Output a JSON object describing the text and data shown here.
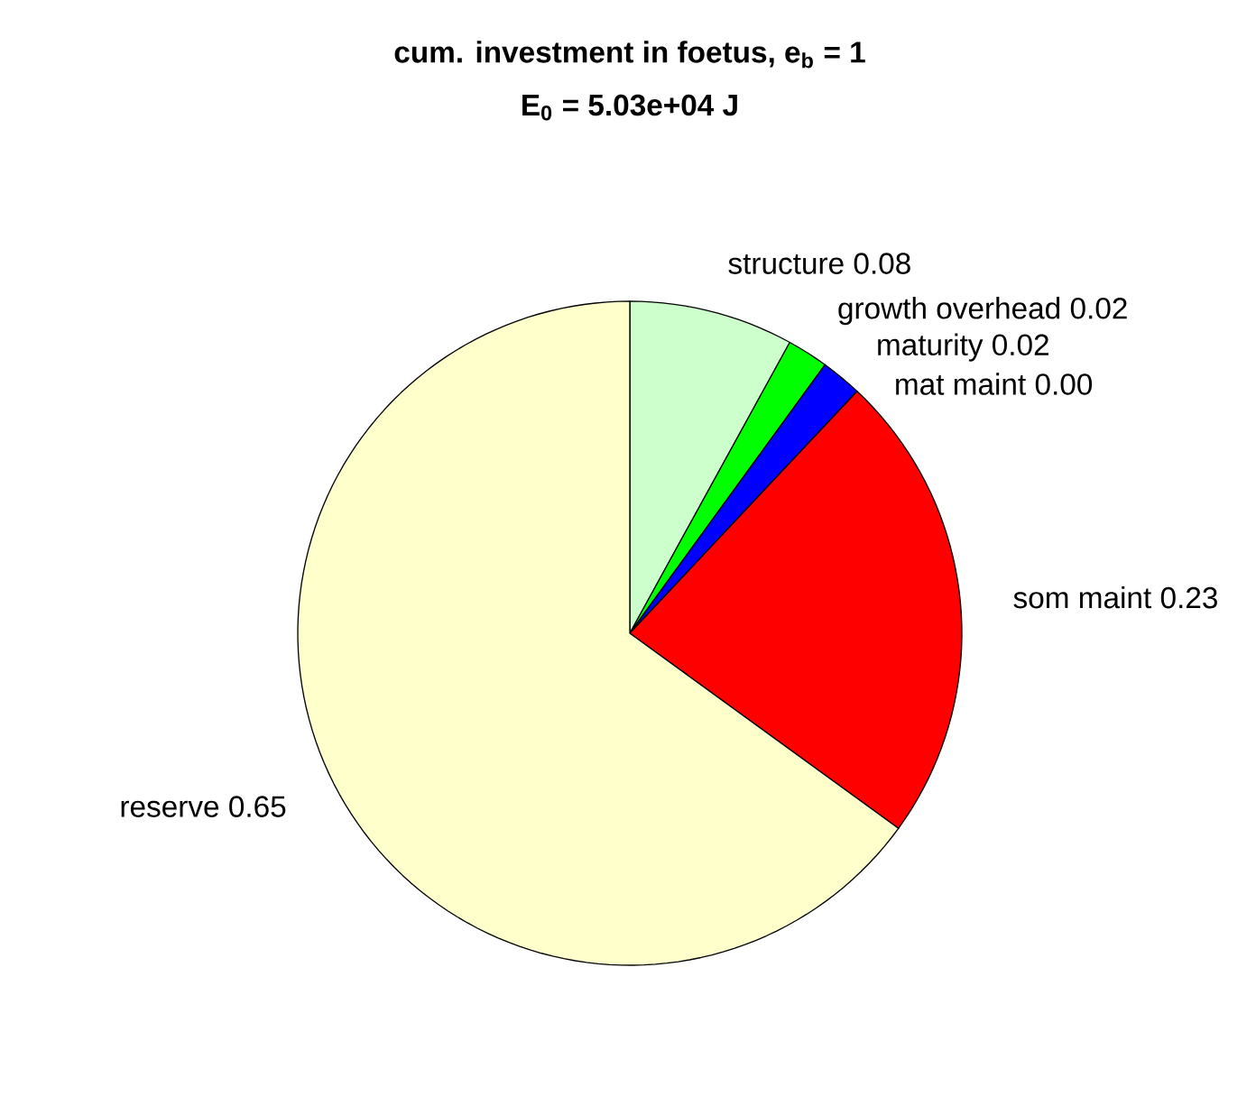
{
  "chart_data": {
    "type": "pie",
    "title": "cum. investment in foetus, e$_{b}$ = 1",
    "subtitle": "E$_{0}$ = 5.03e+04 J",
    "categories": [
      "structure",
      "growth overhead",
      "maturity",
      "mat maint",
      "som maint",
      "reserve"
    ],
    "values": [
      0.08,
      0.02,
      0.02,
      0,
      0.23,
      0.65
    ],
    "value_labels": [
      "0.08",
      "0.02",
      "0.02",
      "0.00",
      "0.23",
      "0.65"
    ],
    "colors": [
      "#ccffcc",
      "#00ff00",
      "#0000ff",
      "#ff00ff",
      "#ff0000",
      "#ffffcc"
    ]
  }
}
